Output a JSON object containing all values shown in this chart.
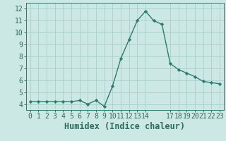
{
  "xlabel": "Humidex (Indice chaleur)",
  "x_values": [
    0,
    1,
    2,
    3,
    4,
    5,
    6,
    7,
    8,
    9,
    10,
    11,
    12,
    13,
    14,
    15,
    16,
    17,
    18,
    19,
    20,
    21,
    22,
    23
  ],
  "y_values": [
    4.2,
    4.2,
    4.2,
    4.2,
    4.2,
    4.2,
    4.3,
    4.0,
    4.3,
    3.8,
    5.5,
    7.8,
    9.4,
    11.0,
    11.8,
    11.0,
    10.7,
    7.4,
    6.9,
    6.6,
    6.3,
    5.9,
    5.8,
    5.7
  ],
  "line_color": "#2d7b6e",
  "marker": "D",
  "marker_size": 2.2,
  "bg_color": "#cce8e4",
  "grid_color": "#aacfca",
  "ylim": [
    3.5,
    12.5
  ],
  "xlim": [
    -0.5,
    23.5
  ],
  "yticks": [
    4,
    5,
    6,
    7,
    8,
    9,
    10,
    11,
    12
  ],
  "xticks": [
    0,
    1,
    2,
    3,
    4,
    5,
    6,
    7,
    8,
    9,
    10,
    11,
    12,
    13,
    14,
    17,
    18,
    19,
    20,
    21,
    22,
    23
  ],
  "tick_label_color": "#2d6b5e",
  "axis_color": "#2d7b6e",
  "xlabel_color": "#2d6b5e",
  "xlabel_fontsize": 8.5,
  "tick_fontsize": 7.0,
  "linewidth": 1.0
}
